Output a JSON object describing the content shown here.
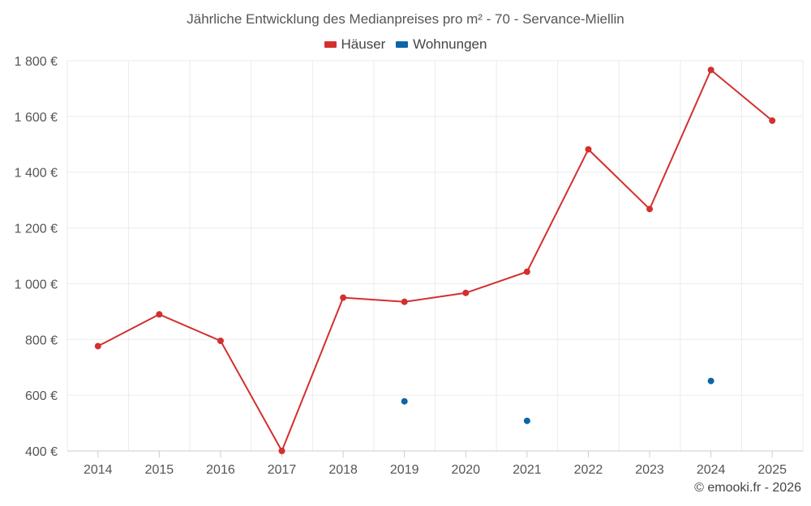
{
  "chart_data": {
    "type": "line",
    "title": "Jährliche Entwicklung des Medianpreises pro m² - 70 - Servance-Miellin",
    "categories": [
      "2014",
      "2015",
      "2016",
      "2017",
      "2018",
      "2019",
      "2020",
      "2021",
      "2022",
      "2023",
      "2024",
      "2025"
    ],
    "series": [
      {
        "name": "Häuser",
        "color": "#d32f2f",
        "values": [
          776,
          890,
          795,
          400,
          950,
          935,
          967,
          1043,
          1482,
          1268,
          1767,
          1585
        ]
      },
      {
        "name": "Wohnungen",
        "color": "#0b66a6",
        "values": [
          null,
          null,
          null,
          null,
          null,
          578,
          null,
          508,
          null,
          null,
          651,
          null
        ]
      }
    ],
    "y_ticks": [
      400,
      600,
      800,
      1000,
      1200,
      1400,
      1600,
      1800
    ],
    "y_tick_labels": [
      "400 €",
      "600 €",
      "800 €",
      "1 000 €",
      "1 200 €",
      "1 400 €",
      "1 600 €",
      "1 800 €"
    ],
    "ylim": [
      400,
      1800
    ],
    "xlabel": "",
    "ylabel": "",
    "grid": true,
    "legend_position": "top-center"
  },
  "credit": "© emooki.fr - 2026"
}
